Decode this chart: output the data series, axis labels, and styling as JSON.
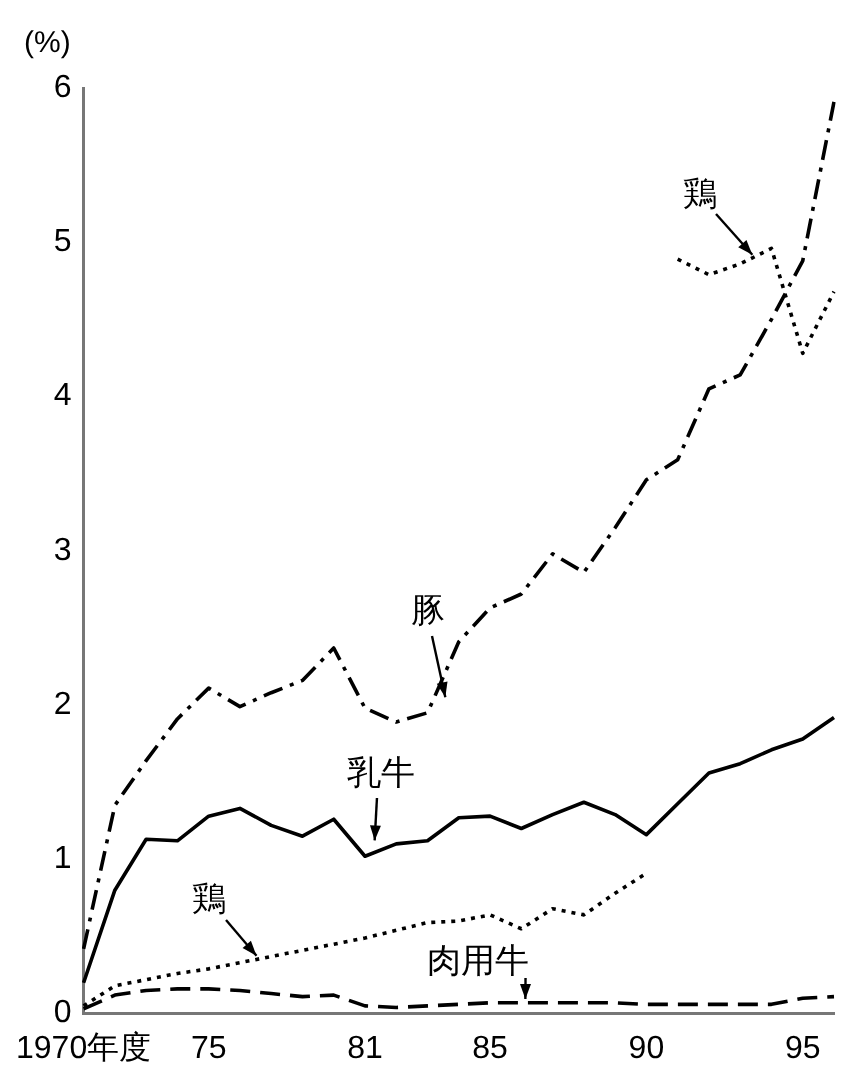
{
  "chart_data": {
    "type": "line",
    "ylabel": "(%)",
    "categories": [
      "1970年度",
      null,
      null,
      null,
      "75",
      null,
      null,
      null,
      null,
      "81",
      null,
      null,
      null,
      "85",
      null,
      null,
      null,
      null,
      "90",
      null,
      null,
      null,
      null,
      "95",
      null
    ],
    "ylim": [
      0,
      6
    ],
    "yticks": [
      0,
      1,
      2,
      3,
      4,
      5,
      6
    ],
    "grid": false,
    "legend": false,
    "marker": "none",
    "series": [
      {
        "name": "豚",
        "color": "#000000",
        "line_style": "dashdot",
        "values": [
          0.42,
          1.35,
          1.64,
          1.91,
          2.11,
          1.99,
          2.08,
          2.16,
          2.37,
          1.98,
          1.89,
          1.95,
          2.41,
          2.63,
          2.72,
          2.98,
          2.86,
          3.15,
          3.46,
          3.59,
          4.05,
          4.14,
          4.5,
          4.88,
          5.91
        ]
      },
      {
        "name": "乳牛",
        "color": "#000000",
        "line_style": "solid",
        "values": [
          0.2,
          0.8,
          1.13,
          1.12,
          1.28,
          1.33,
          1.22,
          1.15,
          1.26,
          1.02,
          1.1,
          1.12,
          1.27,
          1.28,
          1.2,
          1.29,
          1.37,
          1.29,
          1.16,
          1.36,
          1.56,
          1.62,
          1.71,
          1.78,
          1.92
        ]
      },
      {
        "name": "鶏",
        "color": "#000000",
        "line_style": "dotted",
        "values": [
          0.05,
          0.18,
          0.22,
          0.26,
          0.29,
          0.33,
          0.37,
          0.41,
          0.45,
          0.49,
          0.54,
          0.59,
          0.6,
          0.64,
          0.55,
          0.68,
          0.64,
          0.78,
          0.91,
          null,
          null,
          null,
          null,
          null,
          null
        ]
      },
      {
        "name": "肉用牛",
        "color": "#000000",
        "line_style": "dashed",
        "values": [
          0.03,
          0.12,
          0.15,
          0.16,
          0.16,
          0.15,
          0.13,
          0.11,
          0.12,
          0.05,
          0.04,
          0.05,
          0.06,
          0.07,
          0.07,
          0.07,
          0.07,
          0.07,
          0.06,
          0.06,
          0.06,
          0.06,
          0.06,
          0.1,
          0.11
        ]
      },
      {
        "name": "鶏",
        "color": "#000000",
        "line_style": "dotted",
        "values": [
          null,
          null,
          null,
          null,
          null,
          null,
          null,
          null,
          null,
          null,
          null,
          null,
          null,
          null,
          null,
          null,
          null,
          null,
          null,
          4.89,
          4.79,
          4.86,
          4.96,
          4.28,
          4.68
        ]
      }
    ]
  }
}
